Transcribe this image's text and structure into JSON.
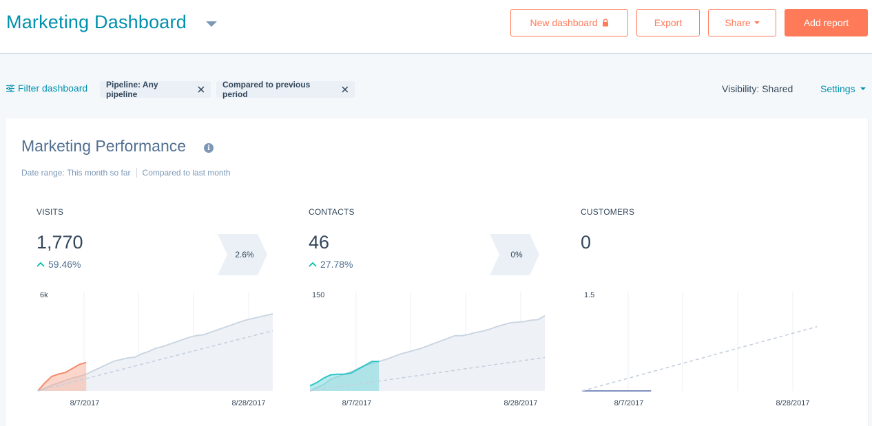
{
  "header": {
    "title": "Marketing Dashboard",
    "buttons": {
      "new_dashboard": "New dashboard",
      "export": "Export",
      "share": "Share",
      "add_report": "Add report"
    }
  },
  "filters": {
    "filter_link": "Filter dashboard",
    "chips": [
      "Pipeline: Any pipeline",
      "Compared to previous period"
    ],
    "visibility_label": "Visibility:",
    "visibility_value": "Shared",
    "settings": "Settings"
  },
  "report": {
    "title": "Marketing Performance",
    "date_range": "Date range: This month so far",
    "compared_to": "Compared to last month"
  },
  "colors": {
    "accent": "#ff7a59",
    "link": "#0091ae",
    "visits": "#f8a48a",
    "contacts": "#5fd3d4",
    "previous": "#cbd6e2"
  },
  "metrics": [
    {
      "label": "VISITS",
      "value": "1,770",
      "change": "59.46%",
      "trend": "up"
    },
    {
      "label": "CONTACTS",
      "value": "46",
      "change": "27.78%",
      "trend": "up"
    },
    {
      "label": "CUSTOMERS",
      "value": "0",
      "change": "",
      "trend": ""
    }
  ],
  "conversions": [
    "2.6%",
    "0%"
  ],
  "chart_data": [
    {
      "type": "area",
      "title": "",
      "ylim": [
        0,
        6000
      ],
      "y_tick_label": "6k",
      "x_tick_labels": [
        "8/7/2017",
        "8/28/2017"
      ],
      "series": [
        {
          "x": [
            1,
            2,
            3,
            4,
            5,
            6,
            7,
            8,
            9,
            10,
            11,
            12,
            13,
            14
          ],
          "values": [
            0,
            500,
            900,
            1050,
            1150,
            1400,
            1650,
            1770,
            null,
            null,
            null,
            null,
            null,
            null
          ]
        },
        {
          "x": [
            1,
            2,
            3,
            4,
            5,
            6,
            7,
            8,
            9,
            10,
            11,
            12,
            13,
            14,
            15,
            16,
            17,
            18,
            19,
            20,
            21,
            22,
            23,
            24,
            25,
            26,
            27,
            28,
            29,
            30,
            31,
            32,
            33,
            34,
            35
          ],
          "values": [
            0,
            150,
            350,
            500,
            650,
            800,
            900,
            1050,
            1250,
            1450,
            1650,
            1850,
            1950,
            2050,
            2100,
            2300,
            2450,
            2650,
            2750,
            2900,
            3050,
            3200,
            3350,
            3450,
            3500,
            3650,
            3800,
            3950,
            4100,
            4250,
            4400,
            4500,
            4600,
            4700,
            4800
          ]
        },
        {
          "x": [
            1,
            35
          ],
          "values": [
            0,
            3750
          ]
        }
      ],
      "grid": true
    },
    {
      "type": "area",
      "title": "",
      "ylim": [
        0,
        150
      ],
      "y_tick_label": "150",
      "x_tick_labels": [
        "8/7/2017",
        "8/28/2017"
      ],
      "series": [
        {
          "x": [
            1,
            2,
            3,
            4,
            5,
            6,
            7,
            8,
            9,
            10,
            11
          ],
          "values": [
            8,
            13,
            20,
            25,
            26,
            26,
            28,
            34,
            40,
            46,
            46
          ]
        },
        {
          "x": [
            1,
            2,
            3,
            4,
            5,
            6,
            7,
            8,
            9,
            10,
            11,
            12,
            13,
            14,
            15,
            16,
            17,
            18,
            19,
            20,
            21,
            22,
            23,
            24,
            25,
            26,
            27,
            28,
            29,
            30,
            31,
            32,
            33,
            34,
            35
          ],
          "values": [
            0,
            5,
            10,
            18,
            22,
            26,
            30,
            35,
            40,
            43,
            46,
            49,
            53,
            57,
            60,
            63,
            66,
            70,
            74,
            78,
            82,
            86,
            86,
            88,
            91,
            93,
            96,
            100,
            103,
            106,
            107,
            108,
            110,
            111,
            117
          ]
        },
        {
          "x": [
            1,
            35
          ],
          "values": [
            0,
            52
          ]
        }
      ],
      "grid": true
    },
    {
      "type": "line",
      "title": "",
      "ylim": [
        0,
        1.5
      ],
      "y_tick_label": "1.5",
      "x_tick_labels": [
        "8/7/2017",
        "8/28/2017"
      ],
      "series": [
        {
          "x": [
            1,
            11
          ],
          "values": [
            0,
            0
          ]
        },
        {
          "x": [
            1,
            35
          ],
          "values": [
            0,
            1
          ]
        }
      ],
      "grid": true
    }
  ]
}
